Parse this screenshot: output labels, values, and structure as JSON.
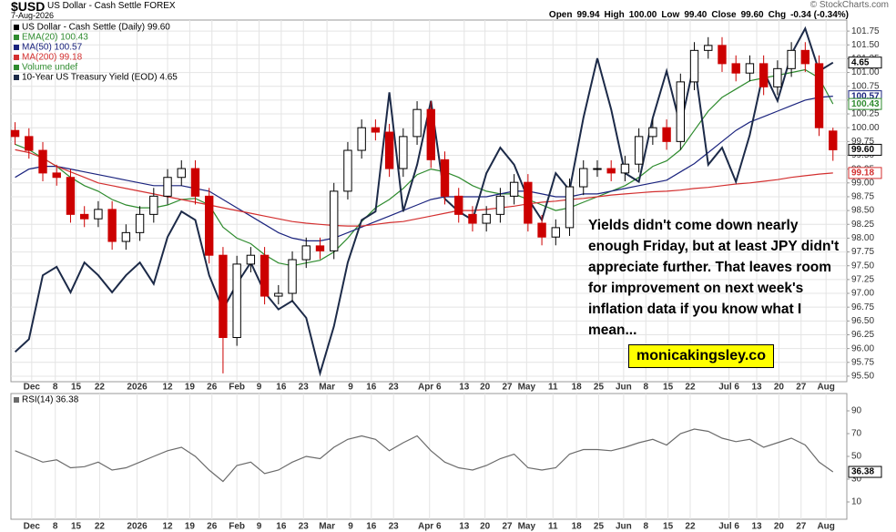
{
  "header": {
    "symbol": "$USD",
    "name": "US Dollar - Cash Settle FOREX",
    "date": "7-Aug-2026",
    "source": "© StockCharts.com",
    "quote": [
      {
        "label": "Open",
        "value": "99.94"
      },
      {
        "label": "High",
        "value": "100.00"
      },
      {
        "label": "Low",
        "value": "99.40"
      },
      {
        "label": "Close",
        "value": "99.60"
      },
      {
        "label": "Chg",
        "value": "-0.34 (-0.34%)"
      }
    ]
  },
  "chart_data": [
    {
      "type": "candlestick",
      "title": "US Dollar - Cash Settle (Daily) 99.60",
      "xlim": [
        -0.3,
        60
      ],
      "ylim": [
        95.4,
        101.95
      ],
      "y2lim": [
        3.9,
        4.75
      ],
      "grid": true,
      "up_color": "#000000",
      "down_color": "#cc0000",
      "xticks": [
        {
          "value": 1.2,
          "label": "Dec"
        },
        {
          "value": 2.9,
          "label": "8"
        },
        {
          "value": 4.4,
          "label": "15"
        },
        {
          "value": 6.1,
          "label": "22"
        },
        {
          "value": 8.8,
          "label": "2026"
        },
        {
          "value": 11.0,
          "label": "12"
        },
        {
          "value": 12.6,
          "label": "19"
        },
        {
          "value": 14.2,
          "label": "26"
        },
        {
          "value": 16.0,
          "label": "Feb"
        },
        {
          "value": 17.6,
          "label": "9"
        },
        {
          "value": 19.2,
          "label": "16"
        },
        {
          "value": 20.8,
          "label": "23"
        },
        {
          "value": 22.5,
          "label": "Mar"
        },
        {
          "value": 24.2,
          "label": "9"
        },
        {
          "value": 25.7,
          "label": "16"
        },
        {
          "value": 27.3,
          "label": "23"
        },
        {
          "value": 29.9,
          "label": "Apr 6"
        },
        {
          "value": 32.4,
          "label": "13"
        },
        {
          "value": 33.9,
          "label": "20"
        },
        {
          "value": 35.5,
          "label": "27"
        },
        {
          "value": 36.9,
          "label": "May"
        },
        {
          "value": 38.8,
          "label": "11"
        },
        {
          "value": 40.5,
          "label": "18"
        },
        {
          "value": 42.1,
          "label": "25"
        },
        {
          "value": 43.9,
          "label": "Jun"
        },
        {
          "value": 45.5,
          "label": "8"
        },
        {
          "value": 47.1,
          "label": "15"
        },
        {
          "value": 48.7,
          "label": "22"
        },
        {
          "value": 51.5,
          "label": "Jul 6"
        },
        {
          "value": 53.5,
          "label": "13"
        },
        {
          "value": 55.1,
          "label": "20"
        },
        {
          "value": 56.7,
          "label": "27"
        },
        {
          "value": 58.5,
          "label": "Aug"
        }
      ],
      "yticks": [
        {
          "value": 95.5,
          "label": "95.50"
        },
        95.75,
        {
          "value": 96,
          "label": "96.00"
        },
        96.25,
        {
          "value": 96.5,
          "label": "96.50"
        },
        96.75,
        {
          "value": 97,
          "label": "97.00"
        },
        97.25,
        {
          "value": 97.5,
          "label": "97.50"
        },
        97.75,
        {
          "value": 98,
          "label": "98.00"
        },
        98.25,
        {
          "value": 98.5,
          "label": "98.50"
        },
        98.75,
        {
          "value": 99,
          "label": "99.00"
        },
        99.25,
        {
          "value": 99.5,
          "label": "99.50"
        },
        99.75,
        {
          "value": 100,
          "label": "100.00"
        },
        100.25,
        {
          "value": 100.5,
          "label": "100.50"
        },
        100.75,
        {
          "value": 101,
          "label": "101.00"
        },
        101.25,
        {
          "value": 101.5,
          "label": "101.50"
        },
        101.75
      ],
      "open": [
        99.95,
        99.84,
        99.59,
        99.18,
        99.1,
        98.43,
        98.35,
        98.52,
        97.94,
        98.1,
        98.43,
        98.76,
        99.1,
        99.26,
        98.76,
        97.69,
        96.2,
        97.53,
        97.69,
        96.95,
        97.0,
        97.61,
        97.86,
        97.77,
        98.85,
        99.59,
        100.0,
        99.92,
        99.26,
        99.84,
        100.33,
        99.42,
        98.76,
        98.43,
        98.27,
        98.43,
        98.76,
        99.01,
        98.27,
        98.02,
        98.19,
        98.93,
        99.26,
        99.26,
        99.18,
        99.34,
        99.84,
        100.0,
        99.75,
        100.83,
        101.4,
        101.49,
        101.16,
        100.99,
        101.16,
        100.74,
        101.07,
        101.4,
        101.16,
        99.94
      ],
      "high": [
        100.1,
        99.99,
        99.74,
        99.33,
        99.25,
        98.58,
        98.67,
        98.67,
        98.25,
        98.58,
        98.91,
        99.25,
        99.41,
        99.41,
        98.91,
        97.84,
        97.68,
        97.84,
        97.84,
        97.15,
        97.76,
        98.01,
        98.01,
        99.0,
        99.74,
        100.15,
        100.15,
        100.07,
        99.99,
        100.48,
        100.48,
        99.57,
        98.91,
        98.58,
        98.58,
        98.91,
        99.16,
        99.16,
        98.42,
        98.34,
        99.08,
        99.41,
        99.41,
        99.41,
        99.49,
        99.99,
        100.15,
        100.15,
        100.98,
        101.55,
        101.64,
        101.64,
        101.31,
        101.31,
        101.31,
        101.22,
        101.55,
        101.55,
        101.31,
        100.0
      ],
      "low": [
        99.69,
        99.44,
        99.03,
        98.95,
        98.28,
        98.2,
        98.2,
        97.79,
        97.79,
        97.95,
        98.28,
        98.61,
        98.95,
        98.61,
        97.54,
        95.55,
        96.05,
        97.38,
        96.8,
        96.8,
        96.85,
        97.46,
        97.62,
        97.62,
        98.7,
        99.44,
        99.77,
        99.11,
        99.11,
        99.69,
        99.27,
        98.61,
        98.28,
        98.12,
        98.12,
        98.28,
        98.61,
        98.12,
        97.87,
        97.87,
        98.04,
        98.78,
        99.11,
        99.03,
        99.03,
        99.19,
        99.69,
        99.6,
        99.6,
        100.68,
        101.25,
        101.01,
        100.84,
        100.84,
        100.59,
        100.59,
        100.92,
        101.01,
        99.85,
        99.4
      ],
      "close": [
        99.84,
        99.59,
        99.18,
        99.1,
        98.43,
        98.35,
        98.52,
        97.94,
        98.1,
        98.43,
        98.76,
        99.1,
        99.26,
        98.76,
        97.69,
        96.2,
        97.53,
        97.69,
        96.95,
        97.0,
        97.61,
        97.86,
        97.77,
        98.85,
        99.59,
        100.0,
        99.92,
        99.26,
        99.84,
        100.33,
        99.42,
        98.76,
        98.43,
        98.27,
        98.43,
        98.76,
        99.01,
        98.27,
        98.02,
        98.19,
        98.93,
        99.26,
        99.26,
        99.18,
        99.34,
        99.84,
        100.0,
        99.75,
        100.83,
        101.4,
        101.49,
        101.16,
        100.99,
        101.16,
        100.74,
        101.07,
        101.4,
        101.16,
        100.0,
        99.6
      ],
      "series": [
        {
          "name": "EMA(20) 100.43",
          "color": "#2e8b2e",
          "values": [
            99.7,
            99.6,
            99.45,
            99.3,
            99.1,
            98.95,
            98.85,
            98.7,
            98.6,
            98.55,
            98.55,
            98.6,
            98.7,
            98.72,
            98.6,
            98.2,
            98.0,
            97.9,
            97.7,
            97.55,
            97.5,
            97.55,
            97.6,
            97.75,
            98.0,
            98.3,
            98.55,
            98.7,
            98.9,
            99.15,
            99.25,
            99.2,
            99.1,
            98.95,
            98.85,
            98.8,
            98.8,
            98.7,
            98.6,
            98.5,
            98.55,
            98.65,
            98.75,
            98.85,
            98.95,
            99.1,
            99.3,
            99.4,
            99.6,
            99.95,
            100.3,
            100.55,
            100.7,
            100.85,
            100.9,
            100.95,
            101.0,
            101.05,
            100.9,
            100.43
          ]
        },
        {
          "name": "MA(50) 100.57",
          "color": "#1a237e",
          "values": [
            99.1,
            99.25,
            99.3,
            99.3,
            99.25,
            99.2,
            99.15,
            99.1,
            99.05,
            99.0,
            98.95,
            98.95,
            98.95,
            98.9,
            98.85,
            98.7,
            98.55,
            98.4,
            98.25,
            98.1,
            98.0,
            97.95,
            97.95,
            98.0,
            98.1,
            98.2,
            98.3,
            98.4,
            98.5,
            98.6,
            98.7,
            98.75,
            98.75,
            98.75,
            98.75,
            98.8,
            98.85,
            98.85,
            98.8,
            98.75,
            98.75,
            98.8,
            98.8,
            98.85,
            98.9,
            98.95,
            99.0,
            99.05,
            99.2,
            99.35,
            99.55,
            99.75,
            99.95,
            100.1,
            100.2,
            100.3,
            100.4,
            100.5,
            100.55,
            100.57
          ]
        },
        {
          "name": "MA(200) 99.18",
          "color": "#d32f2f",
          "values": [
            99.6,
            99.55,
            99.45,
            99.3,
            99.2,
            99.1,
            99.0,
            98.95,
            98.9,
            98.85,
            98.8,
            98.75,
            98.7,
            98.65,
            98.6,
            98.55,
            98.5,
            98.45,
            98.4,
            98.35,
            98.3,
            98.27,
            98.25,
            98.23,
            98.22,
            98.22,
            98.25,
            98.28,
            98.3,
            98.35,
            98.4,
            98.45,
            98.5,
            98.5,
            98.52,
            98.55,
            98.58,
            98.62,
            98.65,
            98.67,
            98.7,
            98.72,
            98.75,
            98.78,
            98.8,
            98.82,
            98.84,
            98.85,
            98.87,
            98.9,
            98.92,
            98.95,
            98.98,
            99.0,
            99.03,
            99.06,
            99.1,
            99.13,
            99.16,
            99.18
          ]
        },
        {
          "name": "10-Year US Treasury Yield (EOD) 4.65",
          "color": "#1c2a48",
          "axis": "y2",
          "values": [
            3.97,
            4.0,
            4.15,
            4.17,
            4.11,
            4.18,
            4.15,
            4.11,
            4.15,
            4.18,
            4.13,
            4.24,
            4.3,
            4.28,
            4.15,
            4.07,
            4.13,
            4.18,
            4.11,
            4.07,
            4.09,
            4.05,
            3.92,
            4.03,
            4.18,
            4.28,
            4.3,
            4.58,
            4.3,
            4.41,
            4.56,
            4.33,
            4.3,
            4.28,
            4.39,
            4.45,
            4.41,
            4.33,
            4.28,
            4.39,
            4.35,
            4.52,
            4.66,
            4.54,
            4.39,
            4.37,
            4.52,
            4.63,
            4.5,
            4.65,
            4.41,
            4.45,
            4.37,
            4.48,
            4.63,
            4.56,
            4.67,
            4.73,
            4.63,
            4.65
          ]
        }
      ],
      "volume_label": "Volume undef",
      "tags": [
        {
          "value": 4.65,
          "axis": "y2",
          "color": "#000000"
        },
        {
          "value": 100.57,
          "color": "#1a237e"
        },
        {
          "value": 100.43,
          "color": "#2e8b2e"
        },
        {
          "value": 99.6,
          "label": "99.60",
          "color": "#000000"
        },
        {
          "value": 99.18,
          "color": "#d32f2f"
        }
      ],
      "annotation": "Yields didn't come down nearly enough Friday, but at least JPY didn't appreciate further. That leaves room for improvement on next week's inflation data if you know what I mean...",
      "watermark": "monicakingsley.co"
    },
    {
      "type": "line",
      "title": "RSI(14) 36.38",
      "ylim": [
        -5.2,
        105.2
      ],
      "yticks": [
        10,
        30,
        50,
        70,
        90
      ],
      "color": "#6b6b6b",
      "values": [
        55,
        50,
        45,
        47,
        40,
        41,
        45,
        38,
        40,
        45,
        50,
        55,
        58,
        50,
        38,
        28,
        42,
        45,
        35,
        38,
        45,
        50,
        48,
        58,
        65,
        68,
        65,
        55,
        62,
        68,
        55,
        45,
        40,
        38,
        42,
        48,
        52,
        40,
        38,
        40,
        52,
        56,
        56,
        55,
        58,
        62,
        65,
        60,
        70,
        74,
        72,
        66,
        63,
        65,
        58,
        62,
        66,
        60,
        45,
        36.38
      ],
      "tags": [
        {
          "value": 36.38,
          "color": "#000000"
        }
      ]
    }
  ]
}
